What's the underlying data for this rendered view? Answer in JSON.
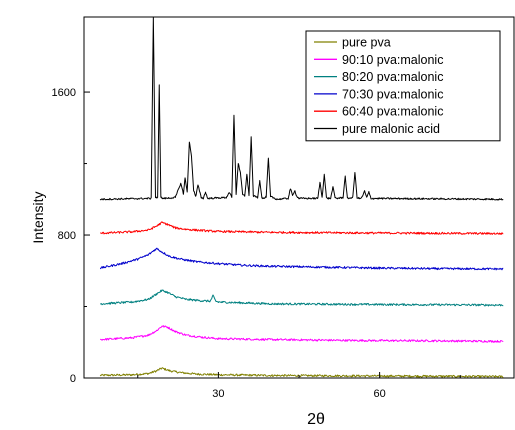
{
  "chart_data": {
    "type": "line",
    "xlabel": "2θ",
    "ylabel": "Intensity",
    "xlim": [
      5,
      85
    ],
    "ylim": [
      0,
      2020
    ],
    "x_ticks": [
      30,
      60
    ],
    "y_ticks": [
      0,
      800,
      1600
    ],
    "legend_position": "top-right",
    "series": [
      {
        "name": "pure pva",
        "color": "#808000",
        "baseline": 15,
        "x": [
          8,
          14,
          17,
          18.5,
          19.5,
          20,
          21,
          23,
          26,
          30,
          40,
          55,
          70,
          83
        ],
        "y": [
          15,
          18,
          25,
          40,
          55,
          50,
          40,
          30,
          22,
          18,
          14,
          12,
          10,
          8
        ]
      },
      {
        "name": "90:10 pva:malonic",
        "color": "#ff00ff",
        "baseline": 215,
        "x": [
          8,
          14,
          17,
          18.5,
          19.5,
          20.5,
          22,
          24,
          27,
          30,
          40,
          55,
          70,
          83
        ],
        "y": [
          215,
          225,
          240,
          265,
          290,
          285,
          260,
          240,
          228,
          220,
          215,
          210,
          208,
          205
        ]
      },
      {
        "name": "80:20 pva:malonic",
        "color": "#008080",
        "baseline": 415,
        "x": [
          8,
          14,
          17,
          18.5,
          19.5,
          20.5,
          22,
          24,
          27,
          28.5,
          29,
          29.5,
          30,
          40,
          55,
          70,
          83
        ],
        "y": [
          415,
          425,
          440,
          470,
          490,
          480,
          455,
          440,
          432,
          430,
          460,
          430,
          425,
          415,
          412,
          410,
          408
        ]
      },
      {
        "name": "70:30 pva:malonic",
        "color": "#0000cc",
        "baseline": 610,
        "x": [
          8,
          12,
          15,
          17,
          18.5,
          19.5,
          21,
          23,
          26,
          30,
          35,
          40,
          50,
          60,
          70,
          83
        ],
        "y": [
          615,
          640,
          665,
          690,
          725,
          705,
          680,
          665,
          650,
          640,
          630,
          625,
          620,
          615,
          612,
          610
        ]
      },
      {
        "name": "60:40 pva:malonic",
        "color": "#ff0000",
        "baseline": 810,
        "x": [
          8,
          14,
          17,
          18.5,
          19.5,
          20.5,
          22,
          24,
          27,
          30,
          40,
          55,
          70,
          83
        ],
        "y": [
          810,
          818,
          828,
          850,
          870,
          860,
          840,
          832,
          825,
          820,
          815,
          812,
          810,
          808
        ]
      },
      {
        "name": "pure malonic acid",
        "color": "#000000",
        "baseline": 1000,
        "x": [
          8,
          17.5,
          17.9,
          18.3,
          18.7,
          19.0,
          19.3,
          19.7,
          20,
          22,
          23.0,
          23.5,
          23.8,
          24.2,
          24.6,
          25.0,
          25.4,
          25.8,
          26.2,
          26.8,
          27.2,
          27.6,
          28,
          31.5,
          32,
          32.5,
          32.9,
          33.3,
          33.7,
          34.1,
          34.5,
          34.9,
          35.3,
          35.7,
          36.1,
          36.5,
          36.9,
          37.3,
          37.7,
          38.1,
          38.5,
          38.9,
          39.3,
          39.7,
          40.1,
          40.5,
          40.9,
          43.0,
          43.4,
          43.8,
          44.2,
          44.6,
          45,
          48.5,
          48.9,
          49.3,
          49.7,
          50.1,
          50.5,
          50.9,
          51.3,
          51.7,
          52.1,
          53.2,
          53.6,
          54.0,
          55.0,
          55.4,
          55.8,
          56.2,
          56.6,
          57.2,
          57.6,
          58.0,
          58.4,
          83
        ],
        "y": [
          1000,
          1005,
          2020,
          1010,
          1008,
          1640,
          1010,
          1005,
          1005,
          1010,
          1090,
          1030,
          1120,
          1040,
          1320,
          1240,
          1050,
          1015,
          1080,
          1010,
          1005,
          1040,
          1005,
          1010,
          1040,
          1010,
          1470,
          1030,
          1200,
          1150,
          1030,
          1015,
          1140,
          1020,
          1350,
          1020,
          1015,
          1010,
          1105,
          1010,
          1005,
          1015,
          1230,
          1015,
          1010,
          1005,
          1000,
          1005,
          1060,
          1020,
          1050,
          1015,
          1005,
          1005,
          1095,
          1010,
          1140,
          1010,
          1005,
          1005,
          1070,
          1010,
          1005,
          1010,
          1130,
          1005,
          1010,
          1150,
          1010,
          1005,
          1005,
          1045,
          1010,
          1040,
          1005,
          1000
        ]
      }
    ]
  }
}
